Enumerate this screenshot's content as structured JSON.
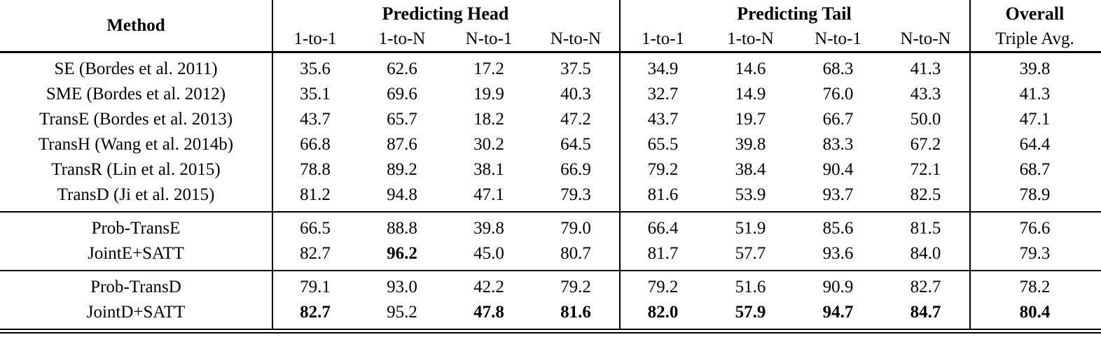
{
  "colors": {
    "text": "#000000",
    "background": "#ffffff",
    "rule": "#000000"
  },
  "table": {
    "header": {
      "method": "Method",
      "groups": [
        {
          "label": "Predicting Head",
          "sub": [
            "1-to-1",
            "1-to-N",
            "N-to-1",
            "N-to-N"
          ]
        },
        {
          "label": "Predicting Tail",
          "sub": [
            "1-to-1",
            "1-to-N",
            "N-to-1",
            "N-to-N"
          ]
        },
        {
          "label": "Overall",
          "sub": [
            "Triple Avg."
          ]
        }
      ]
    },
    "groups": [
      {
        "rows": [
          {
            "method": "SE (Bordes et al. 2011)",
            "values": [
              "35.6",
              "62.6",
              "17.2",
              "37.5",
              "34.9",
              "14.6",
              "68.3",
              "41.3",
              "39.8"
            ],
            "bold": []
          },
          {
            "method": "SME (Bordes et al. 2012)",
            "values": [
              "35.1",
              "69.6",
              "19.9",
              "40.3",
              "32.7",
              "14.9",
              "76.0",
              "43.3",
              "41.3"
            ],
            "bold": []
          },
          {
            "method": "TransE (Bordes et al. 2013)",
            "values": [
              "43.7",
              "65.7",
              "18.2",
              "47.2",
              "43.7",
              "19.7",
              "66.7",
              "50.0",
              "47.1"
            ],
            "bold": []
          },
          {
            "method": "TransH (Wang et al. 2014b)",
            "values": [
              "66.8",
              "87.6",
              "30.2",
              "64.5",
              "65.5",
              "39.8",
              "83.3",
              "67.2",
              "64.4"
            ],
            "bold": []
          },
          {
            "method": "TransR (Lin et al. 2015)",
            "values": [
              "78.8",
              "89.2",
              "38.1",
              "66.9",
              "79.2",
              "38.4",
              "90.4",
              "72.1",
              "68.7"
            ],
            "bold": []
          },
          {
            "method": "TransD (Ji et al. 2015)",
            "values": [
              "81.2",
              "94.8",
              "47.1",
              "79.3",
              "81.6",
              "53.9",
              "93.7",
              "82.5",
              "78.9"
            ],
            "bold": []
          }
        ]
      },
      {
        "rows": [
          {
            "method": "Prob-TransE",
            "values": [
              "66.5",
              "88.8",
              "39.8",
              "79.0",
              "66.4",
              "51.9",
              "85.6",
              "81.5",
              "76.6"
            ],
            "bold": []
          },
          {
            "method": "JointE+SATT",
            "values": [
              "82.7",
              "96.2",
              "45.0",
              "80.7",
              "81.7",
              "57.7",
              "93.6",
              "84.0",
              "79.3"
            ],
            "bold": [
              1
            ]
          }
        ]
      },
      {
        "rows": [
          {
            "method": "Prob-TransD",
            "values": [
              "79.1",
              "93.0",
              "42.2",
              "79.2",
              "79.2",
              "51.6",
              "90.9",
              "82.7",
              "78.2"
            ],
            "bold": []
          },
          {
            "method": "JointD+SATT",
            "values": [
              "82.7",
              "95.2",
              "47.8",
              "81.6",
              "82.0",
              "57.9",
              "94.7",
              "84.7",
              "80.4"
            ],
            "bold": [
              0,
              2,
              3,
              4,
              5,
              6,
              7,
              8
            ]
          }
        ]
      }
    ]
  }
}
